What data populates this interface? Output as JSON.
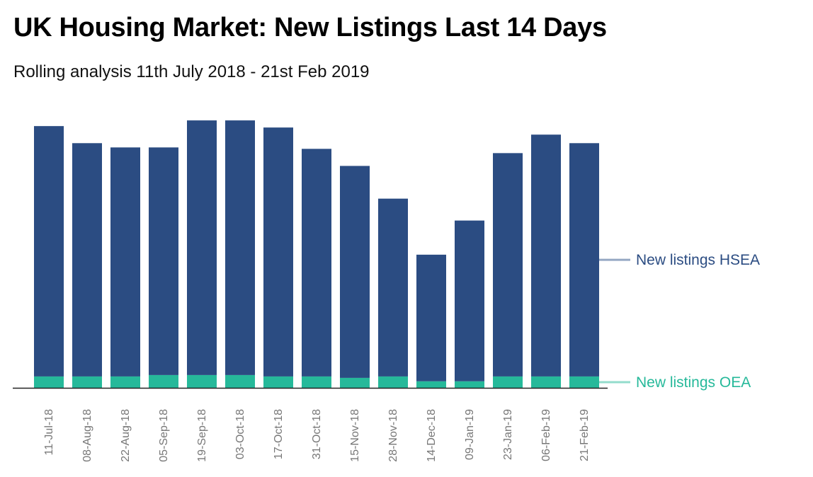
{
  "chart_data": {
    "type": "bar",
    "stacked": true,
    "title": "UK Housing Market: New Listings Last 14 Days",
    "subtitle": "Rolling analysis 11th July 2018 - 21st Feb 2019",
    "xlabel": "",
    "ylabel": "",
    "ylim": [
      0,
      100
    ],
    "grid": false,
    "categories": [
      "11-Jul-18",
      "08-Aug-18",
      "22-Aug-18",
      "05-Sep-18",
      "19-Sep-18",
      "03-Oct-18",
      "17-Oct-18",
      "31-Oct-18",
      "15-Nov-18",
      "28-Nov-18",
      "14-Dec-18",
      "09-Jan-19",
      "23-Jan-19",
      "06-Feb-19",
      "21-Feb-19"
    ],
    "series": [
      {
        "name": "New listings OEA",
        "color": "#26b99a",
        "values": [
          4.0,
          4.0,
          4.0,
          4.5,
          4.5,
          4.5,
          4.0,
          4.0,
          3.5,
          4.0,
          2.3,
          2.3,
          4.0,
          4.0,
          4.0
        ]
      },
      {
        "name": "New listings HSEA",
        "color": "#2b4c82",
        "values": [
          88.0,
          82.0,
          80.5,
          80.0,
          89.5,
          89.5,
          87.5,
          80.0,
          74.5,
          62.5,
          44.5,
          56.5,
          78.5,
          85.0,
          82.0
        ]
      }
    ],
    "legend": [
      {
        "label": "New listings HSEA",
        "color": "#2b4c82",
        "line_color": "#95a8c3"
      },
      {
        "label": "New listings OEA",
        "color": "#26b99a",
        "line_color": "#93dccc"
      }
    ],
    "legend_placement": "right",
    "axis_color": "#222222",
    "tick_color": "#777777"
  }
}
